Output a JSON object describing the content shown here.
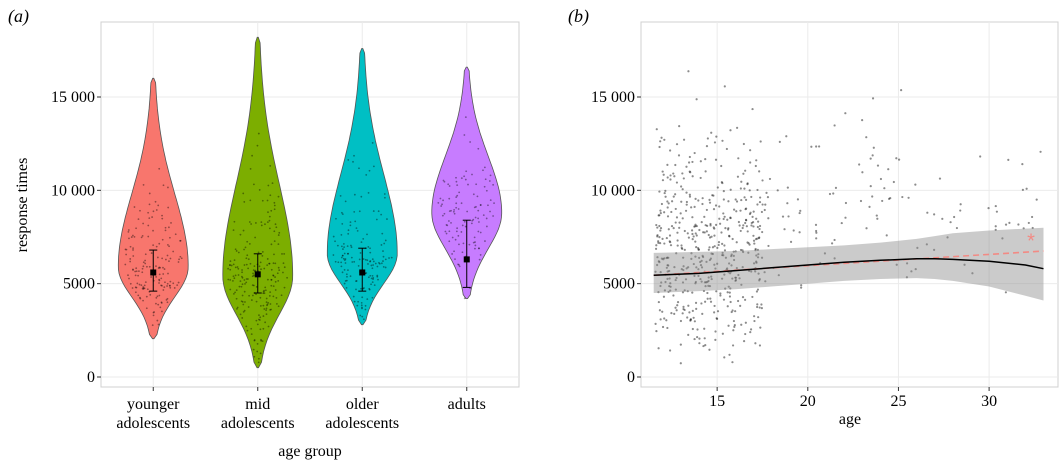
{
  "chart_data": [
    {
      "type": "violin",
      "panel_label": "(a)",
      "xlabel": "age group",
      "ylabel": "response times",
      "ylim": [
        0,
        18500
      ],
      "yticks": [
        0,
        5000,
        10000,
        15000
      ],
      "ytick_labels": [
        "0",
        "5000",
        "10 000",
        "15 000"
      ],
      "categories": [
        {
          "label": [
            "younger",
            "adolescents"
          ],
          "color": "#f8766d",
          "min": 2050,
          "max": 16000,
          "peak": 5900,
          "median": 5600,
          "q1": 4600,
          "q3": 6800,
          "n": 160
        },
        {
          "label": [
            "mid",
            "adolescents"
          ],
          "color": "#7cae00",
          "min": 500,
          "max": 18200,
          "peak": 5400,
          "median": 5500,
          "q1": 4500,
          "q3": 6600,
          "n": 220
        },
        {
          "label": [
            "older",
            "adolescents"
          ],
          "color": "#00bfc4",
          "min": 2800,
          "max": 17600,
          "peak": 6600,
          "median": 5600,
          "q1": 4600,
          "q3": 6900,
          "n": 150
        },
        {
          "label": [
            "adults"
          ],
          "color": "#c77cff",
          "min": 4200,
          "max": 16600,
          "peak": 8800,
          "median": 6300,
          "q1": 4800,
          "q3": 8400,
          "n": 110
        }
      ],
      "grid": true
    },
    {
      "type": "scatter",
      "panel_label": "(b)",
      "xlabel": "age",
      "ylabel": "",
      "xlim": [
        10.8,
        33.8
      ],
      "ylim": [
        0,
        18500
      ],
      "xticks": [
        15,
        20,
        25,
        30
      ],
      "xtick_labels": [
        "15",
        "20",
        "25",
        "30"
      ],
      "yticks": [
        0,
        5000,
        10000,
        15000
      ],
      "ytick_labels": [
        "0",
        "5000",
        "10 000",
        "15 000"
      ],
      "loess_fit": {
        "x": [
          11.5,
          14,
          16,
          18,
          20,
          22,
          24,
          26,
          27,
          28,
          30,
          32,
          33
        ],
        "y": [
          5450,
          5550,
          5700,
          5850,
          6000,
          6150,
          6250,
          6330,
          6330,
          6300,
          6200,
          6000,
          5800
        ]
      },
      "loess_band_upper": [
        6650,
        6700,
        6750,
        6850,
        6950,
        7050,
        7200,
        7400,
        7550,
        7700,
        7850,
        7950,
        8000
      ],
      "loess_band_lower": [
        4500,
        4600,
        4700,
        4850,
        5000,
        5150,
        5250,
        5300,
        5250,
        5150,
        4850,
        4350,
        4100
      ],
      "linear_fit": {
        "x": [
          11.5,
          33
        ],
        "y": [
          5450,
          6750
        ]
      },
      "linear_fit_color": "#f28a84",
      "annotation": "*",
      "annotation_color": "#f28a84",
      "point_counts": {
        "12-17": 520,
        "17-33": 120
      },
      "grid": true
    }
  ]
}
